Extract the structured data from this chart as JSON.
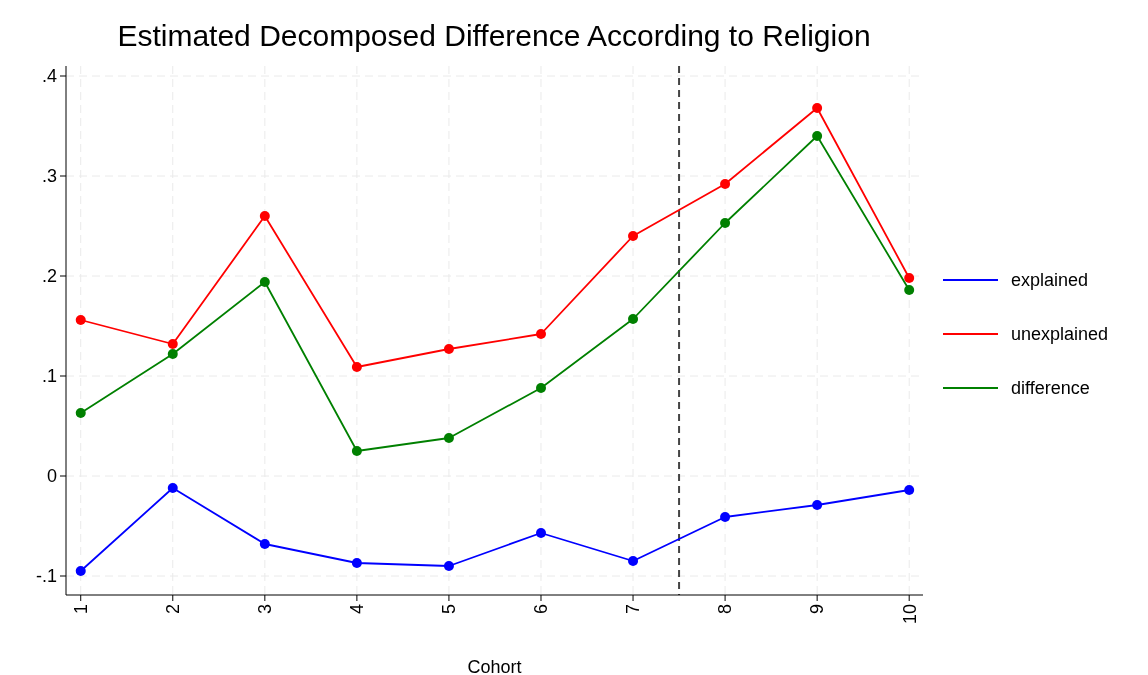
{
  "chart_data": {
    "type": "line",
    "title": "Estimated Decomposed Difference According to Religion",
    "xlabel": "Cohort",
    "x": [
      1,
      2,
      3,
      4,
      5,
      6,
      7,
      8,
      9,
      10
    ],
    "series": [
      {
        "name": "explained",
        "color": "#0000ff",
        "values": [
          -0.095,
          -0.012,
          -0.068,
          -0.087,
          -0.09,
          -0.057,
          -0.085,
          -0.041,
          -0.029,
          -0.014
        ]
      },
      {
        "name": "unexplained",
        "color": "#ff0000",
        "values": [
          0.156,
          0.132,
          0.26,
          0.109,
          0.127,
          0.142,
          0.24,
          0.292,
          0.368,
          0.198
        ]
      },
      {
        "name": "difference",
        "color": "#008000",
        "values": [
          0.063,
          0.122,
          0.194,
          0.025,
          0.038,
          0.088,
          0.157,
          0.253,
          0.34,
          0.186
        ]
      }
    ],
    "xlim": [
      0.84,
      10.15
    ],
    "xticks": [
      1,
      2,
      3,
      4,
      5,
      6,
      7,
      8,
      9,
      10
    ],
    "ylim": [
      -0.119,
      0.41
    ],
    "yticks": [
      {
        "value": -0.1,
        "label": "-.1"
      },
      0,
      {
        "value": 0.1,
        "label": ".1"
      },
      {
        "value": 0.2,
        "label": ".2"
      },
      {
        "value": 0.3,
        "label": ".3"
      },
      {
        "value": 0.4,
        "label": ".4"
      }
    ],
    "ref_lines": [
      {
        "axis": "x",
        "value": 7.5,
        "label": null,
        "color": "#444444",
        "line_style": "dashed"
      }
    ],
    "grid": true,
    "legend": "right",
    "marker": "circle",
    "line_style": "solid"
  }
}
